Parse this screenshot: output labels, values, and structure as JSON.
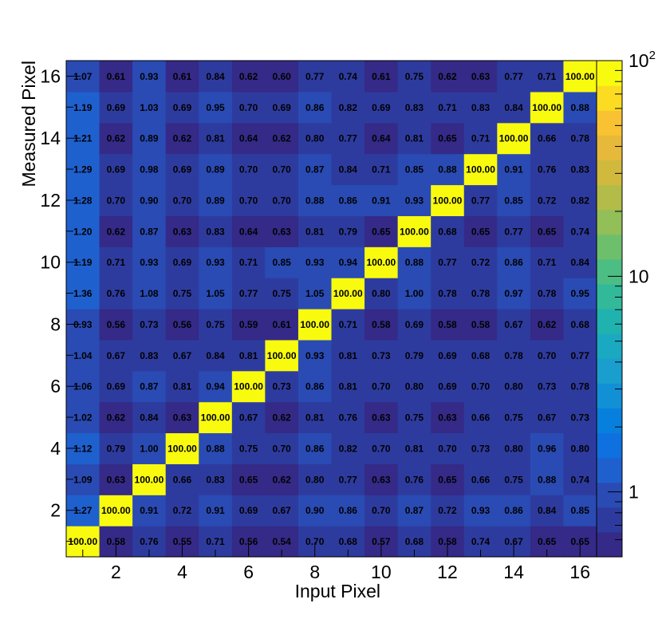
{
  "chart_data": {
    "type": "heatmap",
    "title": "",
    "xlabel": "Input Pixel",
    "ylabel": "Measured Pixel",
    "x": [
      1,
      2,
      3,
      4,
      5,
      6,
      7,
      8,
      9,
      10,
      11,
      12,
      13,
      14,
      15,
      16
    ],
    "y": [
      1,
      2,
      3,
      4,
      5,
      6,
      7,
      8,
      9,
      10,
      11,
      12,
      13,
      14,
      15,
      16
    ],
    "xlim": [
      0.5,
      16.5
    ],
    "ylim": [
      0.5,
      16.5
    ],
    "x_ticks": [
      "2",
      "4",
      "6",
      "8",
      "10",
      "12",
      "14",
      "16"
    ],
    "y_ticks": [
      "2",
      "4",
      "6",
      "8",
      "10",
      "12",
      "14",
      "16"
    ],
    "z_scale": "log",
    "z_range": [
      0.5,
      100
    ],
    "colorbar_ticks": [
      "1",
      "10",
      "10^2"
    ],
    "grid": false,
    "values": [
      [
        "100.00",
        "0.58",
        "0.76",
        "0.55",
        "0.71",
        "0.56",
        "0.54",
        "0.70",
        "0.68",
        "0.57",
        "0.68",
        "0.58",
        "0.74",
        "0.67",
        "0.65",
        "0.65"
      ],
      [
        "1.27",
        "100.00",
        "0.91",
        "0.72",
        "0.91",
        "0.69",
        "0.67",
        "0.90",
        "0.86",
        "0.70",
        "0.87",
        "0.72",
        "0.93",
        "0.86",
        "0.84",
        "0.85"
      ],
      [
        "1.09",
        "0.63",
        "100.00",
        "0.66",
        "0.83",
        "0.65",
        "0.62",
        "0.80",
        "0.77",
        "0.63",
        "0.76",
        "0.65",
        "0.66",
        "0.75",
        "0.88",
        "0.74"
      ],
      [
        "1.12",
        "0.79",
        "1.00",
        "100.00",
        "0.88",
        "0.75",
        "0.70",
        "0.86",
        "0.82",
        "0.70",
        "0.81",
        "0.70",
        "0.73",
        "0.80",
        "0.96",
        "0.80"
      ],
      [
        "1.02",
        "0.62",
        "0.84",
        "0.63",
        "100.00",
        "0.67",
        "0.62",
        "0.81",
        "0.76",
        "0.63",
        "0.75",
        "0.63",
        "0.66",
        "0.75",
        "0.67",
        "0.73"
      ],
      [
        "1.06",
        "0.69",
        "0.87",
        "0.81",
        "0.94",
        "100.00",
        "0.73",
        "0.86",
        "0.81",
        "0.70",
        "0.80",
        "0.69",
        "0.70",
        "0.80",
        "0.73",
        "0.78"
      ],
      [
        "1.04",
        "0.67",
        "0.83",
        "0.67",
        "0.84",
        "0.81",
        "100.00",
        "0.93",
        "0.81",
        "0.73",
        "0.79",
        "0.69",
        "0.68",
        "0.78",
        "0.70",
        "0.77"
      ],
      [
        "0.93",
        "0.56",
        "0.73",
        "0.56",
        "0.75",
        "0.59",
        "0.61",
        "100.00",
        "0.71",
        "0.58",
        "0.69",
        "0.58",
        "0.58",
        "0.67",
        "0.62",
        "0.68"
      ],
      [
        "1.36",
        "0.76",
        "1.08",
        "0.75",
        "1.05",
        "0.77",
        "0.75",
        "1.05",
        "100.00",
        "0.80",
        "1.00",
        "0.78",
        "0.78",
        "0.97",
        "0.78",
        "0.95"
      ],
      [
        "1.19",
        "0.71",
        "0.93",
        "0.69",
        "0.93",
        "0.71",
        "0.85",
        "0.93",
        "0.94",
        "100.00",
        "0.88",
        "0.77",
        "0.72",
        "0.86",
        "0.71",
        "0.84"
      ],
      [
        "1.20",
        "0.62",
        "0.87",
        "0.63",
        "0.83",
        "0.64",
        "0.63",
        "0.81",
        "0.79",
        "0.65",
        "100.00",
        "0.68",
        "0.65",
        "0.77",
        "0.65",
        "0.74"
      ],
      [
        "1.28",
        "0.70",
        "0.90",
        "0.70",
        "0.89",
        "0.70",
        "0.70",
        "0.88",
        "0.86",
        "0.91",
        "0.93",
        "100.00",
        "0.77",
        "0.85",
        "0.72",
        "0.82"
      ],
      [
        "1.29",
        "0.69",
        "0.98",
        "0.69",
        "0.89",
        "0.70",
        "0.70",
        "0.87",
        "0.84",
        "0.71",
        "0.85",
        "0.88",
        "100.00",
        "0.91",
        "0.76",
        "0.83"
      ],
      [
        "1.21",
        "0.62",
        "0.89",
        "0.62",
        "0.81",
        "0.64",
        "0.62",
        "0.80",
        "0.77",
        "0.64",
        "0.81",
        "0.65",
        "0.71",
        "100.00",
        "0.66",
        "0.78"
      ],
      [
        "1.19",
        "0.69",
        "1.03",
        "0.69",
        "0.95",
        "0.70",
        "0.69",
        "0.86",
        "0.82",
        "0.69",
        "0.83",
        "0.71",
        "0.83",
        "0.84",
        "100.00",
        "0.88"
      ],
      [
        "1.07",
        "0.61",
        "0.93",
        "0.61",
        "0.84",
        "0.62",
        "0.60",
        "0.77",
        "0.74",
        "0.61",
        "0.75",
        "0.62",
        "0.63",
        "0.77",
        "0.71",
        "100.00"
      ]
    ]
  },
  "colors": {
    "palette": [
      "#352a87",
      "#2e3b9e",
      "#2a4bb4",
      "#1f60cf",
      "#0f70e0",
      "#0780dd",
      "#1190d6",
      "#1a9ecd",
      "#1ba9c1",
      "#20b2af",
      "#32b99a",
      "#4dbe83",
      "#6ebf6c",
      "#92bf57",
      "#b3bc48",
      "#d1b93e",
      "#e7b93a",
      "#f8c233",
      "#fbdc22",
      "#f9fb0e"
    ],
    "frame": "#000000"
  }
}
